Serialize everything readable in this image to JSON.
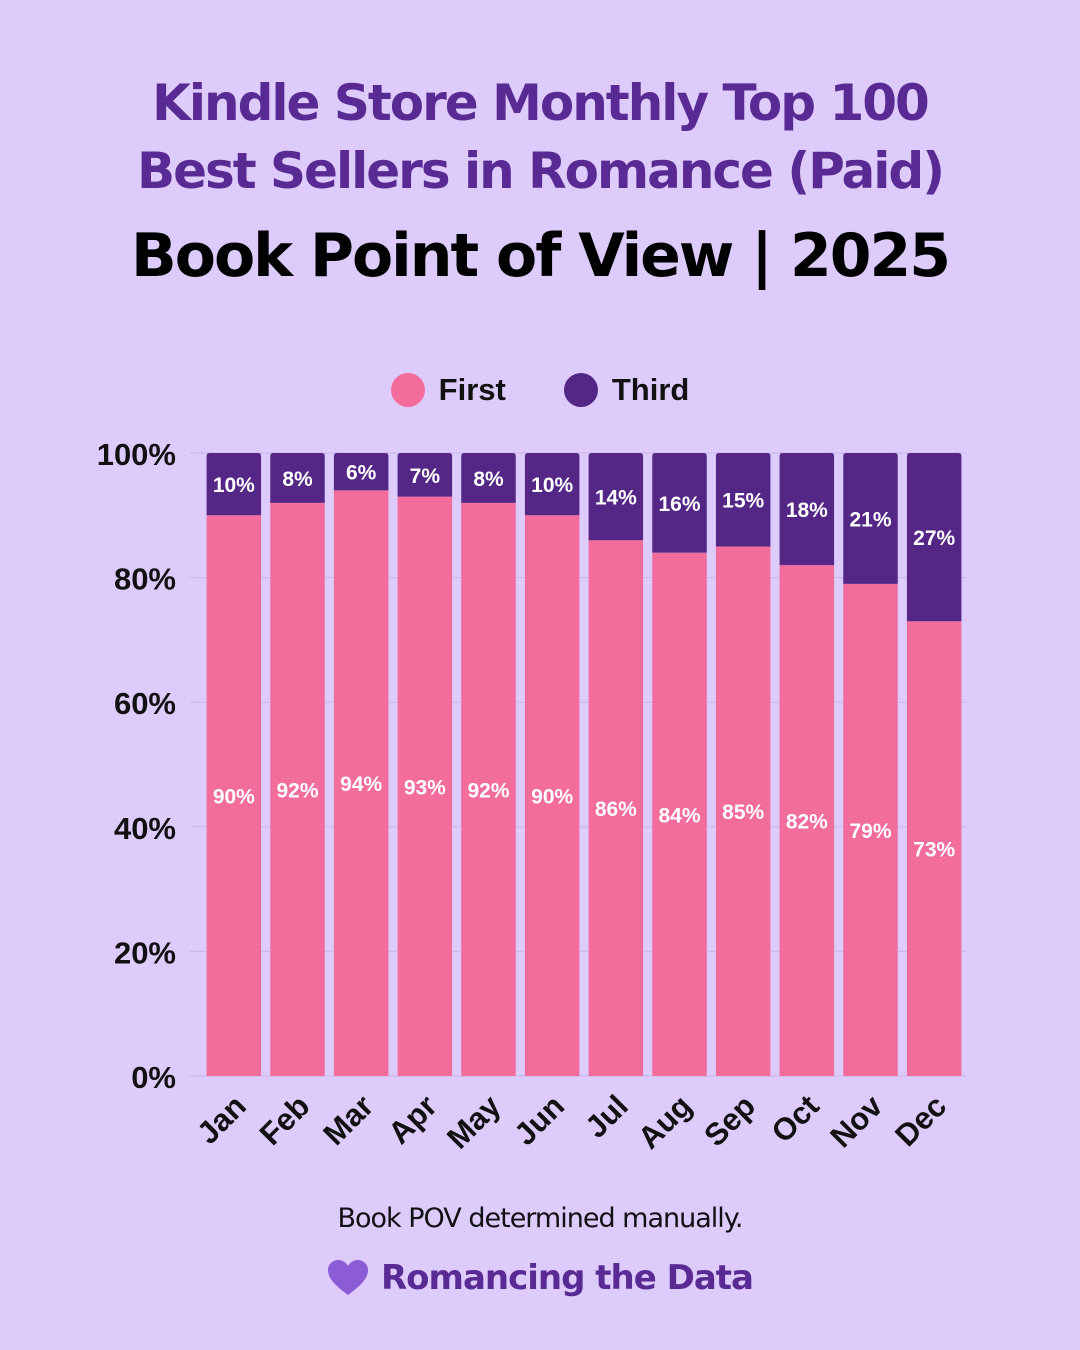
{
  "title": {
    "line1": "Kindle Store Monthly Top 100",
    "line2": "Best Sellers in Romance (Paid)",
    "subtitle": "Book Point of View | 2025"
  },
  "legend": {
    "first": "First",
    "third": "Third"
  },
  "footnote": "Book POV determined manually.",
  "brand": {
    "name": "Romancing the Data",
    "icon": "heart-icon"
  },
  "colors": {
    "background": "#dccbfb",
    "first": "#f26d9b",
    "third": "#542787",
    "title": "#5a2a94",
    "heart": "#8b5cd6"
  },
  "chart_data": {
    "type": "bar",
    "stacked": true,
    "categories": [
      "Jan",
      "Feb",
      "Mar",
      "Apr",
      "May",
      "Jun",
      "Jul",
      "Aug",
      "Sep",
      "Oct",
      "Nov",
      "Dec"
    ],
    "series": [
      {
        "name": "First",
        "values": [
          90,
          92,
          94,
          93,
          92,
          90,
          86,
          84,
          85,
          82,
          79,
          73
        ],
        "labels": [
          "90%",
          "92%",
          "94%",
          "93%",
          "92%",
          "90%",
          "86%",
          "84%",
          "85%",
          "82%",
          "79%",
          "73%"
        ],
        "color": "#f26d9b"
      },
      {
        "name": "Third",
        "values": [
          10,
          8,
          6,
          7,
          8,
          10,
          14,
          16,
          15,
          18,
          21,
          27
        ],
        "labels": [
          "10%",
          "8%",
          "6%",
          "7%",
          "8%",
          "10%",
          "14%",
          "16%",
          "15%",
          "18%",
          "21%",
          "27%"
        ],
        "color": "#542787"
      }
    ],
    "ylim": [
      0,
      100
    ],
    "yticks": [
      0,
      20,
      40,
      60,
      80,
      100
    ],
    "ytick_labels": [
      "0%",
      "20%",
      "40%",
      "60%",
      "80%",
      "100%"
    ],
    "grid": true,
    "legend_position": "top-center"
  }
}
